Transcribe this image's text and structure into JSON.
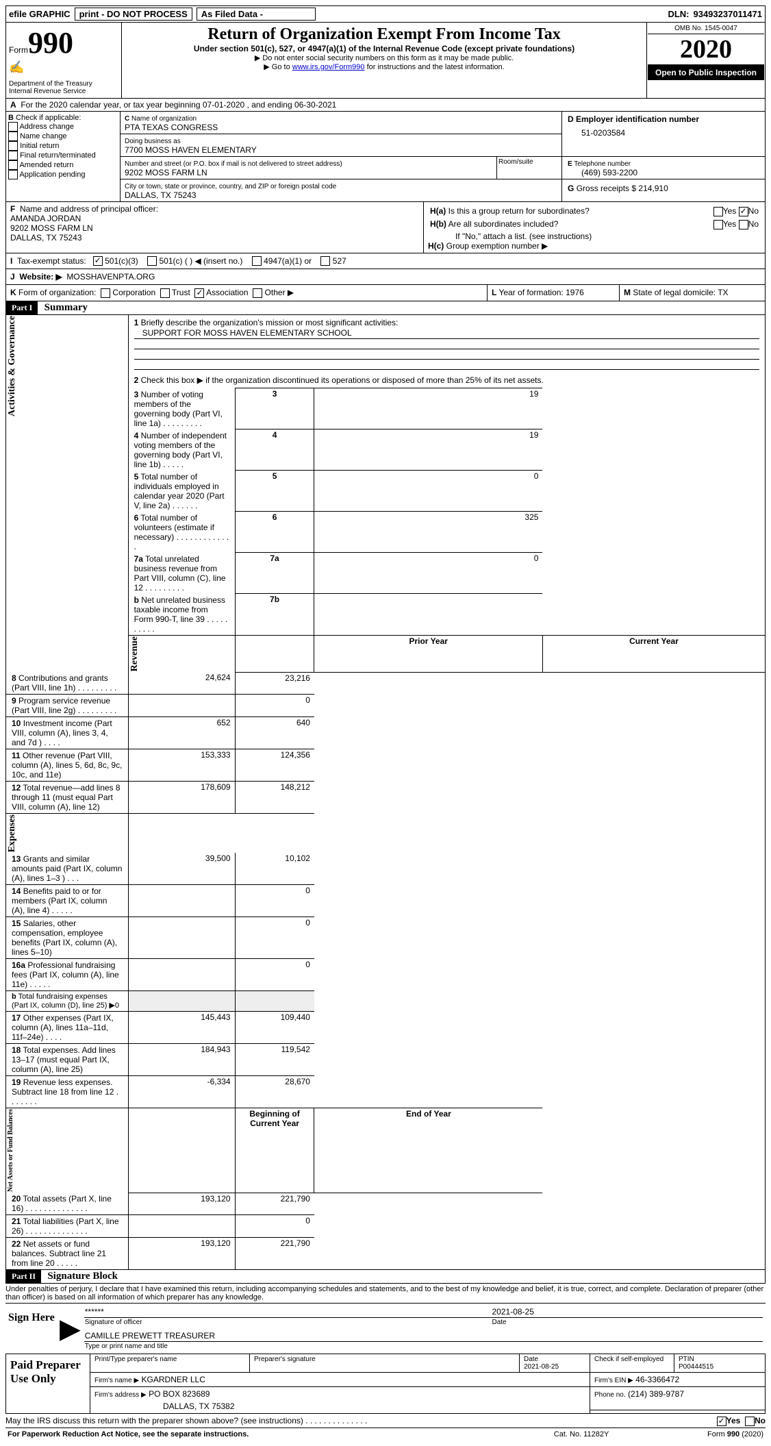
{
  "top_bar": {
    "efile": "efile GRAPHIC",
    "print": "print - DO NOT PROCESS",
    "as_filed": "As Filed Data - ",
    "dln_label": "DLN:",
    "dln": "93493237011471"
  },
  "header": {
    "form_word": "Form",
    "form_number": "990",
    "dept": "Department of the Treasury\nInternal Revenue Service",
    "title": "Return of Organization Exempt From Income Tax",
    "subtitle": "Under section 501(c), 527, or 4947(a)(1) of the Internal Revenue Code (except private foundations)",
    "instr1": "▶ Do not enter social security numbers on this form as it may be made public.",
    "instr2_prefix": "▶ Go to ",
    "instr2_link": "www.irs.gov/Form990",
    "instr2_suffix": " for instructions and the latest information.",
    "omb_label": "OMB No. 1545-0047",
    "year": "2020",
    "open": "Open to Public Inspection"
  },
  "line_a": {
    "text": "For the 2020 calendar year, or tax year beginning 07-01-2020   , and ending 06-30-2021"
  },
  "box_b": {
    "title": "Check if applicable:",
    "items": [
      "Address change",
      "Name change",
      "Initial return",
      "Final return/terminated",
      "Amended return",
      "Application pending"
    ]
  },
  "box_c": {
    "label": "Name of organization",
    "org": "PTA TEXAS CONGRESS",
    "dba_label": "Doing business as",
    "dba": "7700 MOSS HAVEN ELEMENTARY",
    "addr_label": "Number and street (or P.O. box if mail is not delivered to street address)",
    "room_label": "Room/suite",
    "addr": "9202 MOSS FARM LN",
    "city_label": "City or town, state or province, country, and ZIP or foreign postal code",
    "city": "DALLAS, TX  75243"
  },
  "box_d": {
    "label": "Employer identification number",
    "value": "51-0203584"
  },
  "box_e": {
    "label": "Telephone number",
    "value": "(469) 593-2200"
  },
  "box_g": {
    "label": "Gross receipts $",
    "value": "214,910"
  },
  "box_f": {
    "label": "Name and address of principal officer:",
    "line1": "AMANDA JORDAN",
    "line2": "9202 MOSS FARM LN",
    "line3": "DALLAS, TX  75243"
  },
  "box_h": {
    "ha": "Is this a group return for subordinates?",
    "hb": "Are all subordinates included?",
    "hnote": "If \"No,\" attach a list. (see instructions)",
    "hc": "Group exemption number ▶",
    "yes": "Yes",
    "no": "No"
  },
  "box_i": {
    "label": "Tax-exempt status:",
    "opts": [
      "501(c)(3)",
      "501(c) (   ) ◀ (insert no.)",
      "4947(a)(1) or",
      "527"
    ]
  },
  "box_j": {
    "label": "Website: ▶",
    "value": "MOSSHAVENPTA.ORG"
  },
  "box_k": {
    "label": "Form of organization:",
    "opts": [
      "Corporation",
      "Trust",
      "Association",
      "Other ▶"
    ]
  },
  "box_l": {
    "label": "Year of formation:",
    "value": "1976"
  },
  "box_m": {
    "label": "State of legal domicile:",
    "value": "TX"
  },
  "part1": {
    "hdr": "Part I",
    "title": "Summary",
    "q1_label": "Briefly describe the organization's mission or most significant activities:",
    "q1_value": "SUPPORT FOR MOSS HAVEN ELEMENTARY SCHOOL",
    "q2": "Check this box ▶         if the organization discontinued its operations or disposed of more than 25% of its net assets.",
    "prior_year": "Prior Year",
    "current_year": "Current Year",
    "begin_year": "Beginning of Current Year",
    "end_year": "End of Year",
    "rows_ag": [
      {
        "n": "3",
        "t": "Number of voting members of the governing body (Part VI, line 1a)   .    .    .    .    .    .    .    .    .",
        "lbl": "3",
        "v": "19"
      },
      {
        "n": "4",
        "t": "Number of independent voting members of the governing body (Part VI, line 1b)   .    .    .    .    .",
        "lbl": "4",
        "v": "19"
      },
      {
        "n": "5",
        "t": "Total number of individuals employed in calendar year 2020 (Part V, line 2a)   .    .    .    .    .    .",
        "lbl": "5",
        "v": "0"
      },
      {
        "n": "6",
        "t": "Total number of volunteers (estimate if necessary)   .    .    .    .    .    .    .    .    .    .    .    .    .",
        "lbl": "6",
        "v": "325"
      },
      {
        "n": "7a",
        "t": "Total unrelated business revenue from Part VIII, column (C), line 12   .    .    .    .    .    .    .    .    .",
        "lbl": "7a",
        "v": "0"
      },
      {
        "n": "b",
        "t": "Net unrelated business taxable income from Form 990-T, line 39   .    .    .    .    .    .    .    .    .    .",
        "lbl": "7b",
        "v": ""
      }
    ],
    "rows_rev": [
      {
        "n": "8",
        "t": "Contributions and grants (Part VIII, line 1h)   .    .    .    .    .    .    .    .    .",
        "p": "24,624",
        "c": "23,216"
      },
      {
        "n": "9",
        "t": "Program service revenue (Part VIII, line 2g)   .    .    .    .    .    .    .    .    .",
        "p": "",
        "c": "0"
      },
      {
        "n": "10",
        "t": "Investment income (Part VIII, column (A), lines 3, 4, and 7d )   .    .    .    .",
        "p": "652",
        "c": "640"
      },
      {
        "n": "11",
        "t": "Other revenue (Part VIII, column (A), lines 5, 6d, 8c, 9c, 10c, and 11e)",
        "p": "153,333",
        "c": "124,356"
      },
      {
        "n": "12",
        "t": "Total revenue—add lines 8 through 11 (must equal Part VIII, column (A), line 12)",
        "p": "178,609",
        "c": "148,212"
      }
    ],
    "rows_exp": [
      {
        "n": "13",
        "t": "Grants and similar amounts paid (Part IX, column (A), lines 1–3 )   .    .    .",
        "p": "39,500",
        "c": "10,102"
      },
      {
        "n": "14",
        "t": "Benefits paid to or for members (Part IX, column (A), line 4)   .    .    .    .    .",
        "p": "",
        "c": "0"
      },
      {
        "n": "15",
        "t": "Salaries, other compensation, employee benefits (Part IX, column (A), lines 5–10)",
        "p": "",
        "c": "0"
      },
      {
        "n": "16a",
        "t": "Professional fundraising fees (Part IX, column (A), line 11e)   .    .    .    .    .",
        "p": "",
        "c": "0"
      },
      {
        "n": "b",
        "t": "Total fundraising expenses (Part IX, column (D), line 25) ▶0",
        "p": "",
        "c": ""
      },
      {
        "n": "17",
        "t": "Other expenses (Part IX, column (A), lines 11a–11d, 11f–24e)   .    .    .    .",
        "p": "145,443",
        "c": "109,440"
      },
      {
        "n": "18",
        "t": "Total expenses. Add lines 13–17 (must equal Part IX, column (A), line 25)",
        "p": "184,943",
        "c": "119,542"
      },
      {
        "n": "19",
        "t": "Revenue less expenses. Subtract line 18 from line 12 .    .    .    .    .    .   .",
        "p": "-6,334",
        "c": "28,670"
      }
    ],
    "rows_na": [
      {
        "n": "20",
        "t": "Total assets (Part X, line 16)   .    .    .    .    .    .    .    .    .    .    .    .    .    .",
        "p": "193,120",
        "c": "221,790"
      },
      {
        "n": "21",
        "t": "Total liabilities (Part X, line 26)  .    .    .    .    .    .    .    .    .    .    .    .    .    .",
        "p": "",
        "c": "0"
      },
      {
        "n": "22",
        "t": "Net assets or fund balances. Subtract line 21 from line 20 .    .    .    .    .",
        "p": "193,120",
        "c": "221,790"
      }
    ],
    "vlabels": {
      "ag": "Activities & Governance",
      "rev": "Revenue",
      "exp": "Expenses",
      "na": "Net Assets or Fund Balances"
    }
  },
  "part2": {
    "hdr": "Part II",
    "title": "Signature Block",
    "decl": "Under penalties of perjury, I declare that I have examined this return, including accompanying schedules and statements, and to the best of my knowledge and belief, it is true, correct, and complete. Declaration of preparer (other than officer) is based on all information of which preparer has any knowledge."
  },
  "sign": {
    "label": "Sign Here",
    "stars": "******",
    "sig_label": "Signature of officer",
    "date": "2021-08-25",
    "date_label": "Date",
    "name": "CAMILLE PREWETT TREASURER",
    "name_label": "Type or print name and title"
  },
  "preparer": {
    "label": "Paid Preparer Use Only",
    "col_name": "Print/Type preparer's name",
    "col_sig": "Preparer's signature",
    "col_date": "Date",
    "date": "2021-08-25",
    "col_check": "Check         if self-employed",
    "col_ptin": "PTIN",
    "ptin": "P00444515",
    "firm_name_label": "Firm's name    ▶",
    "firm_name": "KGARDNER LLC",
    "firm_ein_label": "Firm's EIN ▶",
    "firm_ein": "46-3366472",
    "firm_addr_label": "Firm's address ▶",
    "firm_addr1": "PO BOX 823689",
    "firm_addr2": "DALLAS, TX  75382",
    "phone_label": "Phone no.",
    "phone": "(214) 389-9787"
  },
  "footer": {
    "discuss": "May the IRS discuss this return with the preparer shown above? (see instructions)   .    .    .    .    .    .    .    .    .    .    .    .    .    .",
    "yes": "Yes",
    "no": "No",
    "paperwork": "For Paperwork Reduction Act Notice, see the separate instructions.",
    "cat": "Cat. No. 11282Y",
    "form": "Form 990 (2020)"
  }
}
